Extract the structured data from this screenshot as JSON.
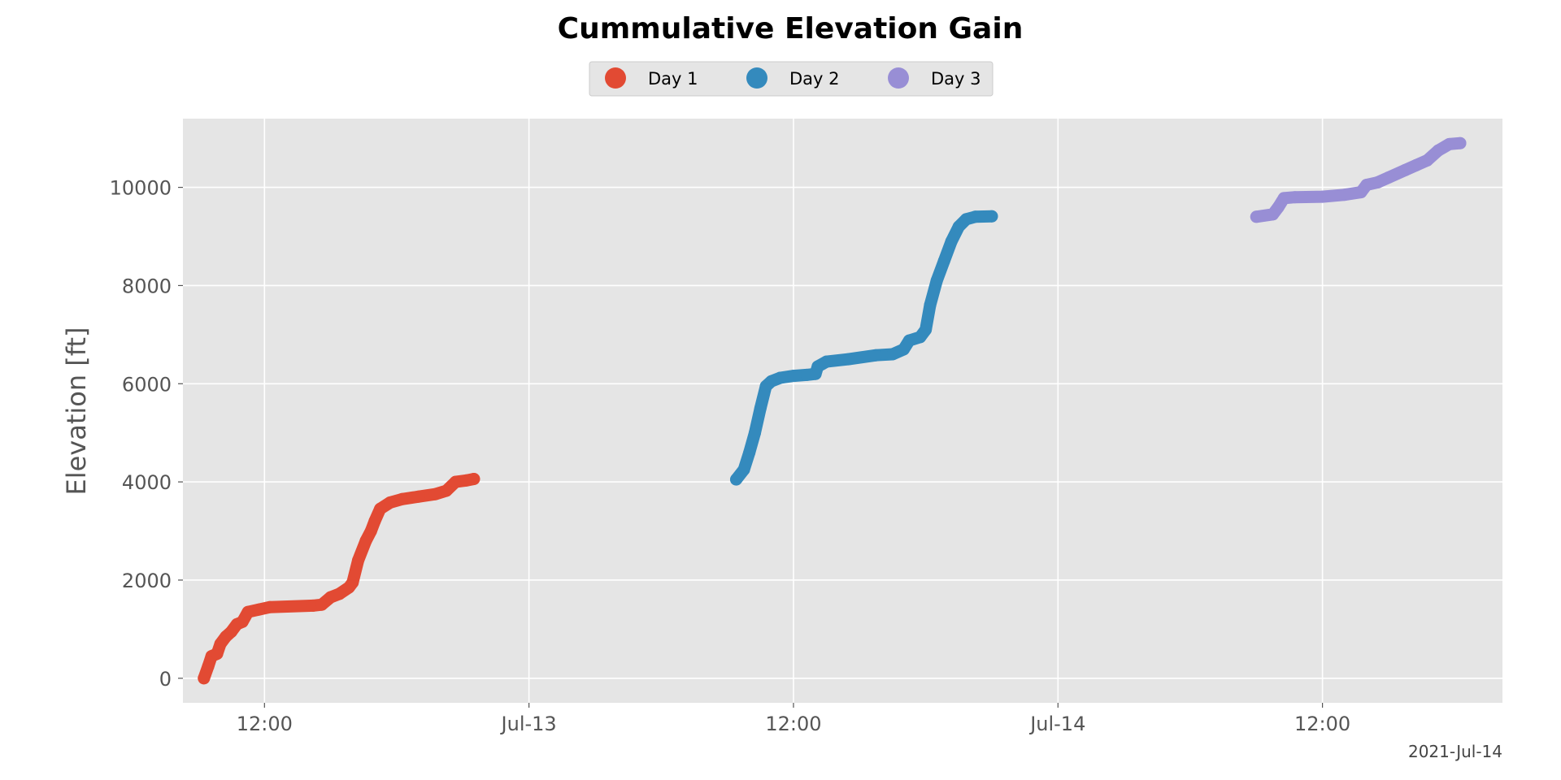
{
  "chart_data": {
    "type": "scatter",
    "title": "Cummulative Elevation Gain",
    "xlabel": "",
    "ylabel": "Elevation [ft]",
    "x_axis": {
      "type": "datetime",
      "range": [
        "2021-07-12 08:18",
        "2021-07-14 20:10"
      ],
      "ticks": [
        {
          "x": "2021-07-12 12:00",
          "label": "12:00"
        },
        {
          "x": "2021-07-13 00:00",
          "label": "Jul-13"
        },
        {
          "x": "2021-07-13 12:00",
          "label": "12:00"
        },
        {
          "x": "2021-07-14 00:00",
          "label": "Jul-14"
        },
        {
          "x": "2021-07-14 12:00",
          "label": "12:00"
        }
      ],
      "offset_label": "2021-Jul-14"
    },
    "y_axis": {
      "range": [
        -500,
        11400
      ],
      "ticks": [
        0,
        2000,
        4000,
        6000,
        8000,
        10000
      ]
    },
    "grid": true,
    "legend": {
      "position": "top-center"
    },
    "series": [
      {
        "name": "Day 1",
        "color": "#E24A33",
        "points": [
          {
            "x": "2021-07-12 09:15",
            "y": 0
          },
          {
            "x": "2021-07-12 09:27",
            "y": 250
          },
          {
            "x": "2021-07-12 09:36",
            "y": 450
          },
          {
            "x": "2021-07-12 09:51",
            "y": 500
          },
          {
            "x": "2021-07-12 10:00",
            "y": 700
          },
          {
            "x": "2021-07-12 10:15",
            "y": 850
          },
          {
            "x": "2021-07-12 10:30",
            "y": 950
          },
          {
            "x": "2021-07-12 10:45",
            "y": 1100
          },
          {
            "x": "2021-07-12 11:00",
            "y": 1150
          },
          {
            "x": "2021-07-12 11:15",
            "y": 1350
          },
          {
            "x": "2021-07-12 11:45",
            "y": 1400
          },
          {
            "x": "2021-07-12 12:15",
            "y": 1450
          },
          {
            "x": "2021-07-12 14:12",
            "y": 1480
          },
          {
            "x": "2021-07-12 14:36",
            "y": 1500
          },
          {
            "x": "2021-07-12 15:00",
            "y": 1650
          },
          {
            "x": "2021-07-12 15:24",
            "y": 1720
          },
          {
            "x": "2021-07-12 15:50",
            "y": 1850
          },
          {
            "x": "2021-07-12 16:00",
            "y": 1950
          },
          {
            "x": "2021-07-12 16:15",
            "y": 2400
          },
          {
            "x": "2021-07-12 16:36",
            "y": 2800
          },
          {
            "x": "2021-07-12 16:50",
            "y": 3000
          },
          {
            "x": "2021-07-12 17:00",
            "y": 3200
          },
          {
            "x": "2021-07-12 17:15",
            "y": 3450
          },
          {
            "x": "2021-07-12 17:42",
            "y": 3580
          },
          {
            "x": "2021-07-12 18:15",
            "y": 3650
          },
          {
            "x": "2021-07-12 19:00",
            "y": 3700
          },
          {
            "x": "2021-07-12 19:45",
            "y": 3750
          },
          {
            "x": "2021-07-12 20:15",
            "y": 3820
          },
          {
            "x": "2021-07-12 20:40",
            "y": 4000
          },
          {
            "x": "2021-07-12 21:10",
            "y": 4030
          },
          {
            "x": "2021-07-12 21:30",
            "y": 4060
          }
        ]
      },
      {
        "name": "Day 2",
        "color": "#348ABD",
        "points": [
          {
            "x": "2021-07-13 09:24",
            "y": 4050
          },
          {
            "x": "2021-07-13 09:45",
            "y": 4250
          },
          {
            "x": "2021-07-13 10:00",
            "y": 4600
          },
          {
            "x": "2021-07-13 10:15",
            "y": 5000
          },
          {
            "x": "2021-07-13 10:30",
            "y": 5500
          },
          {
            "x": "2021-07-13 10:45",
            "y": 5950
          },
          {
            "x": "2021-07-13 11:00",
            "y": 6050
          },
          {
            "x": "2021-07-13 11:24",
            "y": 6120
          },
          {
            "x": "2021-07-13 12:00",
            "y": 6160
          },
          {
            "x": "2021-07-13 12:36",
            "y": 6180
          },
          {
            "x": "2021-07-13 13:00",
            "y": 6200
          },
          {
            "x": "2021-07-13 13:06",
            "y": 6350
          },
          {
            "x": "2021-07-13 13:30",
            "y": 6450
          },
          {
            "x": "2021-07-13 14:30",
            "y": 6500
          },
          {
            "x": "2021-07-13 15:45",
            "y": 6580
          },
          {
            "x": "2021-07-13 16:30",
            "y": 6600
          },
          {
            "x": "2021-07-13 17:00",
            "y": 6700
          },
          {
            "x": "2021-07-13 17:15",
            "y": 6880
          },
          {
            "x": "2021-07-13 17:45",
            "y": 6950
          },
          {
            "x": "2021-07-13 18:00",
            "y": 7100
          },
          {
            "x": "2021-07-13 18:12",
            "y": 7600
          },
          {
            "x": "2021-07-13 18:30",
            "y": 8100
          },
          {
            "x": "2021-07-13 18:50",
            "y": 8500
          },
          {
            "x": "2021-07-13 19:10",
            "y": 8900
          },
          {
            "x": "2021-07-13 19:30",
            "y": 9200
          },
          {
            "x": "2021-07-13 19:50",
            "y": 9350
          },
          {
            "x": "2021-07-13 20:15",
            "y": 9400
          },
          {
            "x": "2021-07-13 21:00",
            "y": 9410
          }
        ]
      },
      {
        "name": "Day 3",
        "color": "#988ED5",
        "points": [
          {
            "x": "2021-07-14 09:00",
            "y": 9400
          },
          {
            "x": "2021-07-14 09:45",
            "y": 9450
          },
          {
            "x": "2021-07-14 10:00",
            "y": 9600
          },
          {
            "x": "2021-07-14 10:15",
            "y": 9780
          },
          {
            "x": "2021-07-14 10:45",
            "y": 9800
          },
          {
            "x": "2021-07-14 12:00",
            "y": 9810
          },
          {
            "x": "2021-07-14 13:00",
            "y": 9850
          },
          {
            "x": "2021-07-14 13:45",
            "y": 9900
          },
          {
            "x": "2021-07-14 14:00",
            "y": 10050
          },
          {
            "x": "2021-07-14 14:30",
            "y": 10100
          },
          {
            "x": "2021-07-14 15:00",
            "y": 10200
          },
          {
            "x": "2021-07-14 15:45",
            "y": 10350
          },
          {
            "x": "2021-07-14 16:15",
            "y": 10450
          },
          {
            "x": "2021-07-14 16:45",
            "y": 10550
          },
          {
            "x": "2021-07-14 17:15",
            "y": 10750
          },
          {
            "x": "2021-07-14 17:45",
            "y": 10880
          },
          {
            "x": "2021-07-14 18:15",
            "y": 10900
          }
        ]
      }
    ]
  }
}
